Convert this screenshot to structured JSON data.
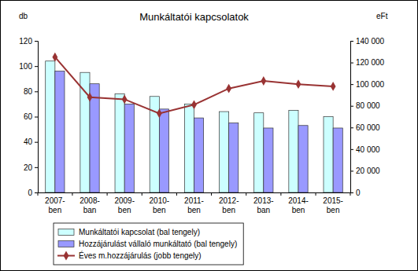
{
  "chart_data": {
    "type": "bar",
    "title": "Munkáltatói kapcsolatok",
    "y_label": "db",
    "y2_label": "eFt",
    "categories": [
      "2007-ben",
      "2008-ban",
      "2009-ben",
      "2010-ben",
      "2011-ben",
      "2012-ben",
      "2013-ban",
      "2014-ben",
      "2015-ben"
    ],
    "series": [
      {
        "name": "Munkáltatói kapcsolat (bal tengely)",
        "type": "bar",
        "color": "#ccffff",
        "values": [
          104,
          95,
          78,
          76,
          70,
          64,
          63,
          65,
          60
        ]
      },
      {
        "name": "Hozzájárulást vállaló munkáltató (bal tengely)",
        "type": "bar",
        "color": "#9999ff",
        "values": [
          96,
          86,
          70,
          66,
          59,
          55,
          51,
          53,
          51
        ]
      },
      {
        "name": "Éves m.hozzájárulás (jobb tengely)",
        "type": "line",
        "axis": "y2",
        "color": "#993333",
        "marker": "diamond",
        "values": [
          125000,
          88000,
          86000,
          73000,
          81000,
          96000,
          103000,
          100000,
          98000
        ]
      }
    ],
    "ylim": [
      0,
      120
    ],
    "yticks": [
      0,
      20,
      40,
      60,
      80,
      100,
      120
    ],
    "y2lim": [
      0,
      140000
    ],
    "y2ticks": [
      0,
      {
        "value": 20000,
        "label": "20 000"
      },
      {
        "value": 40000,
        "label": "40 000"
      },
      {
        "value": 60000,
        "label": "60 000"
      },
      {
        "value": 80000,
        "label": "80 000"
      },
      {
        "value": 100000,
        "label": "100 000"
      },
      {
        "value": 120000,
        "label": "120 000"
      },
      {
        "value": 140000,
        "label": "140 000"
      }
    ],
    "grid": false,
    "legend": "lower left"
  }
}
